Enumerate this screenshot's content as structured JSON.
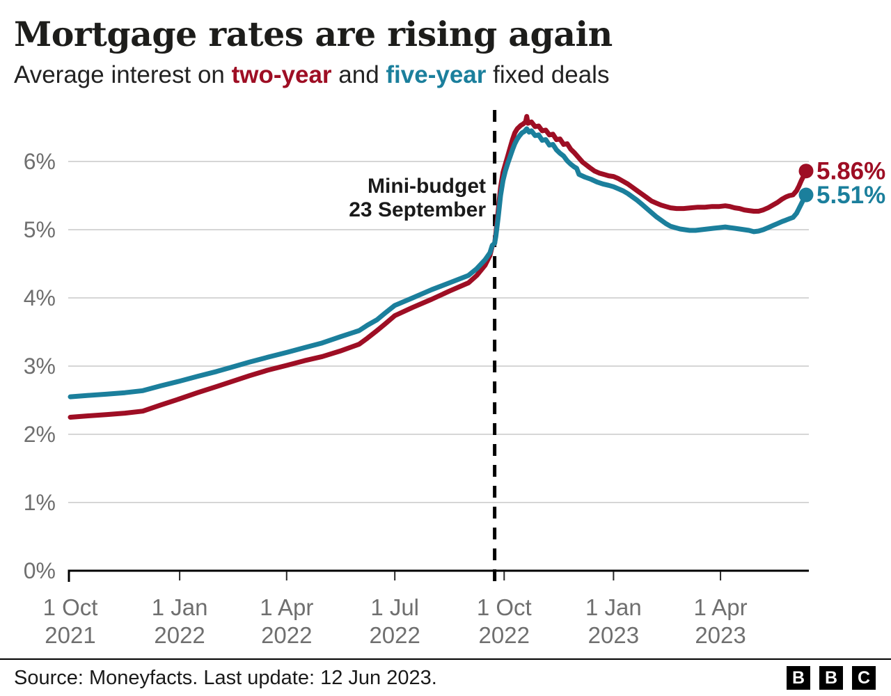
{
  "header": {
    "title": "Mortgage rates are rising again",
    "subtitle": {
      "prefix": "Average interest on ",
      "series1": "two-year",
      "mid": " and ",
      "series2": "five-year",
      "suffix": " fixed deals"
    }
  },
  "colors": {
    "two_year": "#9e0e24",
    "five_year": "#1b7f9c",
    "grid": "#d6d6d6",
    "axis": "#000000",
    "tick_text": "#6f6f6f",
    "annotation_text": "#1a1a1a"
  },
  "chart_data": {
    "type": "line",
    "title": "Mortgage rates are rising again",
    "subtitle": "Average interest on two-year and five-year fixed deals",
    "grid": true,
    "x_axis": {
      "unit": "days since 1 Oct 2021",
      "start_label": "1 Oct 2021",
      "end_label": "12 Jun 2023",
      "range_days": [
        0,
        619
      ],
      "ticks": [
        {
          "day": 0,
          "line1": "1 Oct",
          "line2": "2021"
        },
        {
          "day": 92,
          "line1": "1 Jan",
          "line2": "2022"
        },
        {
          "day": 182,
          "line1": "1 Apr",
          "line2": "2022"
        },
        {
          "day": 273,
          "line1": "1 Jul",
          "line2": "2022"
        },
        {
          "day": 365,
          "line1": "1 Oct",
          "line2": "2022"
        },
        {
          "day": 457,
          "line1": "1 Jan",
          "line2": "2023"
        },
        {
          "day": 547,
          "line1": "1 Apr",
          "line2": "2023"
        }
      ]
    },
    "y_axis": {
      "unit": "percent",
      "range": [
        0,
        6.8
      ],
      "tick_values": [
        0,
        1,
        2,
        3,
        4,
        5,
        6
      ],
      "tick_labels": [
        "0%",
        "1%",
        "2%",
        "3%",
        "4%",
        "5%",
        "6%"
      ]
    },
    "annotation": {
      "line1": "Mini-budget",
      "line2": "23 September",
      "day": 357
    },
    "series": [
      {
        "name": "two-year",
        "color": "#9e0e24",
        "end_label": "5.86%",
        "end_value": 5.86,
        "points": [
          [
            0,
            2.25
          ],
          [
            15,
            2.27
          ],
          [
            31,
            2.29
          ],
          [
            46,
            2.31
          ],
          [
            61,
            2.34
          ],
          [
            76,
            2.43
          ],
          [
            92,
            2.52
          ],
          [
            107,
            2.61
          ],
          [
            123,
            2.7
          ],
          [
            137,
            2.78
          ],
          [
            151,
            2.86
          ],
          [
            166,
            2.94
          ],
          [
            182,
            3.01
          ],
          [
            197,
            3.08
          ],
          [
            212,
            3.14
          ],
          [
            227,
            3.22
          ],
          [
            243,
            3.32
          ],
          [
            250,
            3.41
          ],
          [
            258,
            3.52
          ],
          [
            265,
            3.62
          ],
          [
            273,
            3.74
          ],
          [
            288,
            3.86
          ],
          [
            304,
            3.98
          ],
          [
            319,
            4.1
          ],
          [
            335,
            4.22
          ],
          [
            342,
            4.33
          ],
          [
            349,
            4.48
          ],
          [
            353,
            4.62
          ],
          [
            355,
            4.76
          ],
          [
            357,
            4.8
          ],
          [
            358,
            4.94
          ],
          [
            360,
            5.28
          ],
          [
            362,
            5.62
          ],
          [
            364,
            5.84
          ],
          [
            366,
            5.96
          ],
          [
            368,
            6.08
          ],
          [
            370,
            6.2
          ],
          [
            372,
            6.32
          ],
          [
            374,
            6.42
          ],
          [
            376,
            6.48
          ],
          [
            379,
            6.53
          ],
          [
            381,
            6.55
          ],
          [
            383,
            6.58
          ],
          [
            384,
            6.66
          ],
          [
            385,
            6.56
          ],
          [
            388,
            6.58
          ],
          [
            391,
            6.51
          ],
          [
            394,
            6.52
          ],
          [
            397,
            6.45
          ],
          [
            400,
            6.46
          ],
          [
            403,
            6.39
          ],
          [
            406,
            6.4
          ],
          [
            409,
            6.32
          ],
          [
            412,
            6.33
          ],
          [
            415,
            6.25
          ],
          [
            418,
            6.26
          ],
          [
            421,
            6.18
          ],
          [
            424,
            6.13
          ],
          [
            426,
            6.09
          ],
          [
            428,
            6.05
          ],
          [
            431,
            5.99
          ],
          [
            434,
            5.95
          ],
          [
            437,
            5.91
          ],
          [
            441,
            5.86
          ],
          [
            445,
            5.83
          ],
          [
            449,
            5.81
          ],
          [
            453,
            5.79
          ],
          [
            457,
            5.78
          ],
          [
            461,
            5.75
          ],
          [
            465,
            5.71
          ],
          [
            469,
            5.67
          ],
          [
            473,
            5.62
          ],
          [
            477,
            5.57
          ],
          [
            481,
            5.52
          ],
          [
            485,
            5.47
          ],
          [
            489,
            5.42
          ],
          [
            493,
            5.39
          ],
          [
            497,
            5.36
          ],
          [
            501,
            5.34
          ],
          [
            505,
            5.32
          ],
          [
            510,
            5.31
          ],
          [
            516,
            5.31
          ],
          [
            522,
            5.32
          ],
          [
            528,
            5.33
          ],
          [
            534,
            5.33
          ],
          [
            540,
            5.34
          ],
          [
            546,
            5.34
          ],
          [
            551,
            5.35
          ],
          [
            555,
            5.34
          ],
          [
            559,
            5.32
          ],
          [
            563,
            5.31
          ],
          [
            567,
            5.29
          ],
          [
            571,
            5.28
          ],
          [
            575,
            5.27
          ],
          [
            579,
            5.27
          ],
          [
            583,
            5.29
          ],
          [
            587,
            5.32
          ],
          [
            591,
            5.36
          ],
          [
            595,
            5.4
          ],
          [
            599,
            5.45
          ],
          [
            602,
            5.48
          ],
          [
            605,
            5.5
          ],
          [
            608,
            5.51
          ],
          [
            611,
            5.57
          ],
          [
            613,
            5.64
          ],
          [
            615,
            5.72
          ],
          [
            617,
            5.79
          ],
          [
            619,
            5.86
          ]
        ]
      },
      {
        "name": "five-year",
        "color": "#1b7f9c",
        "end_label": "5.51%",
        "end_value": 5.51,
        "points": [
          [
            0,
            2.55
          ],
          [
            15,
            2.57
          ],
          [
            31,
            2.59
          ],
          [
            46,
            2.61
          ],
          [
            61,
            2.64
          ],
          [
            76,
            2.71
          ],
          [
            92,
            2.78
          ],
          [
            107,
            2.85
          ],
          [
            123,
            2.92
          ],
          [
            137,
            2.99
          ],
          [
            151,
            3.06
          ],
          [
            166,
            3.13
          ],
          [
            182,
            3.2
          ],
          [
            197,
            3.27
          ],
          [
            212,
            3.34
          ],
          [
            227,
            3.43
          ],
          [
            243,
            3.52
          ],
          [
            250,
            3.6
          ],
          [
            258,
            3.68
          ],
          [
            265,
            3.78
          ],
          [
            273,
            3.89
          ],
          [
            288,
            4.0
          ],
          [
            304,
            4.12
          ],
          [
            319,
            4.22
          ],
          [
            335,
            4.33
          ],
          [
            342,
            4.43
          ],
          [
            349,
            4.56
          ],
          [
            353,
            4.66
          ],
          [
            355,
            4.77
          ],
          [
            357,
            4.8
          ],
          [
            358,
            4.9
          ],
          [
            360,
            5.18
          ],
          [
            362,
            5.5
          ],
          [
            364,
            5.72
          ],
          [
            366,
            5.86
          ],
          [
            368,
            5.97
          ],
          [
            370,
            6.07
          ],
          [
            372,
            6.17
          ],
          [
            374,
            6.26
          ],
          [
            376,
            6.33
          ],
          [
            378,
            6.38
          ],
          [
            380,
            6.42
          ],
          [
            382,
            6.44
          ],
          [
            384,
            6.48
          ],
          [
            386,
            6.43
          ],
          [
            388,
            6.45
          ],
          [
            391,
            6.38
          ],
          [
            394,
            6.39
          ],
          [
            397,
            6.31
          ],
          [
            400,
            6.32
          ],
          [
            403,
            6.24
          ],
          [
            406,
            6.25
          ],
          [
            409,
            6.17
          ],
          [
            412,
            6.12
          ],
          [
            415,
            6.08
          ],
          [
            418,
            6.01
          ],
          [
            421,
            5.96
          ],
          [
            424,
            5.92
          ],
          [
            426,
            5.9
          ],
          [
            428,
            5.81
          ],
          [
            433,
            5.77
          ],
          [
            438,
            5.74
          ],
          [
            443,
            5.7
          ],
          [
            448,
            5.67
          ],
          [
            453,
            5.65
          ],
          [
            457,
            5.63
          ],
          [
            461,
            5.6
          ],
          [
            465,
            5.57
          ],
          [
            469,
            5.53
          ],
          [
            473,
            5.48
          ],
          [
            477,
            5.43
          ],
          [
            481,
            5.37
          ],
          [
            485,
            5.31
          ],
          [
            489,
            5.25
          ],
          [
            493,
            5.19
          ],
          [
            497,
            5.14
          ],
          [
            501,
            5.09
          ],
          [
            505,
            5.05
          ],
          [
            509,
            5.03
          ],
          [
            513,
            5.01
          ],
          [
            517,
            5.0
          ],
          [
            521,
            4.99
          ],
          [
            526,
            4.99
          ],
          [
            531,
            5.0
          ],
          [
            536,
            5.01
          ],
          [
            541,
            5.02
          ],
          [
            546,
            5.03
          ],
          [
            551,
            5.04
          ],
          [
            555,
            5.03
          ],
          [
            559,
            5.02
          ],
          [
            563,
            5.01
          ],
          [
            567,
            5.0
          ],
          [
            571,
            4.99
          ],
          [
            575,
            4.97
          ],
          [
            579,
            4.98
          ],
          [
            583,
            5.0
          ],
          [
            587,
            5.03
          ],
          [
            591,
            5.06
          ],
          [
            595,
            5.09
          ],
          [
            599,
            5.12
          ],
          [
            602,
            5.14
          ],
          [
            605,
            5.16
          ],
          [
            608,
            5.18
          ],
          [
            611,
            5.24
          ],
          [
            613,
            5.31
          ],
          [
            615,
            5.38
          ],
          [
            617,
            5.45
          ],
          [
            619,
            5.51
          ]
        ]
      }
    ],
    "legend_position": "in-subtitle"
  },
  "footer": {
    "source": "Source: Moneyfacts. Last update: 12 Jun 2023.",
    "logo_letters": [
      "B",
      "B",
      "C"
    ]
  }
}
